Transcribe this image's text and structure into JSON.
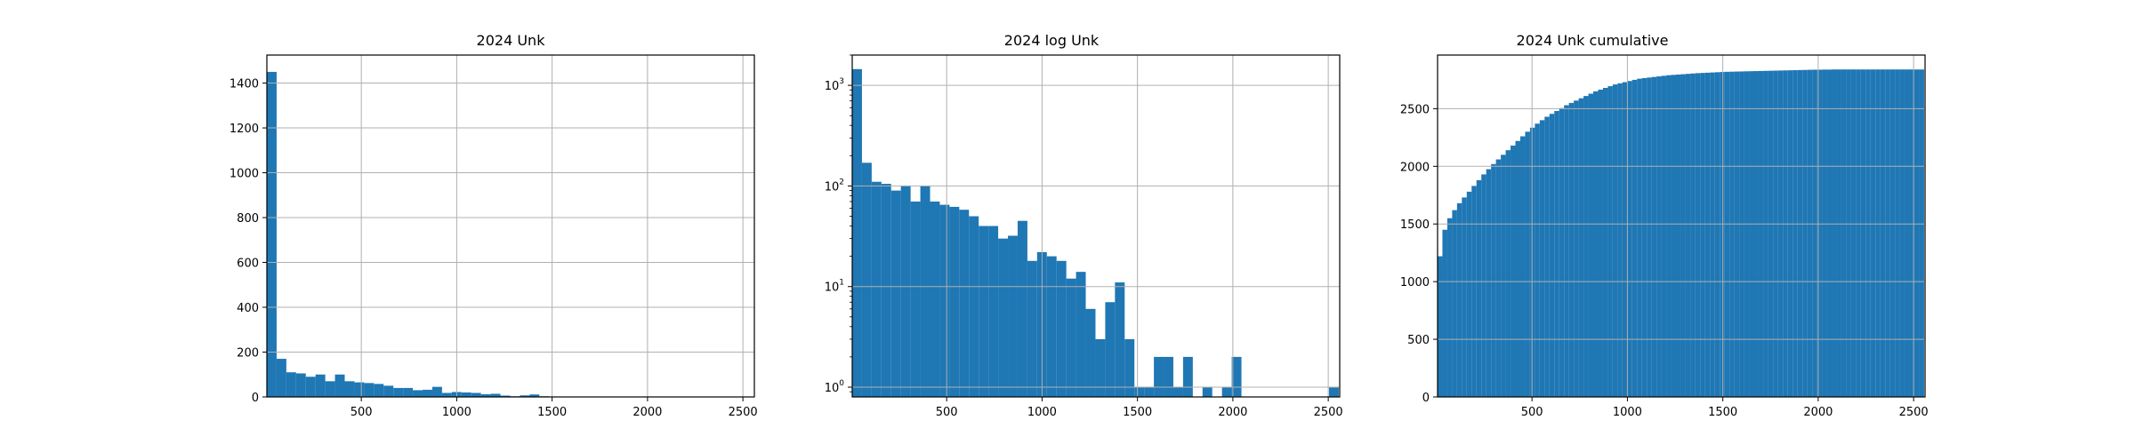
{
  "figure": {
    "bar_color": "#1f77b4",
    "grid_color": "#b0b0b0",
    "axis_color": "#000000"
  },
  "chart_data": [
    {
      "type": "bar",
      "title": "2024 Unk",
      "xlabel": "",
      "ylabel": "",
      "xlim": [
        5,
        2560
      ],
      "ylim": [
        0,
        1525
      ],
      "yscale": "linear",
      "grid": true,
      "xticks": [
        500,
        1000,
        1500,
        2000,
        2500
      ],
      "xtick_labels": [
        "500",
        "1000",
        "1500",
        "2000",
        "2500"
      ],
      "yticks": [
        0,
        200,
        400,
        600,
        800,
        1000,
        1200,
        1400
      ],
      "ytick_labels": [
        "0",
        "200",
        "400",
        "600",
        "800",
        "1000",
        "1200",
        "1400"
      ],
      "bin_edges_start": 5,
      "bin_width": 51,
      "values": [
        1450,
        170,
        110,
        105,
        90,
        100,
        70,
        100,
        70,
        65,
        62,
        58,
        50,
        40,
        40,
        30,
        32,
        45,
        18,
        22,
        20,
        18,
        12,
        14,
        6,
        3,
        7,
        11,
        3,
        0,
        0,
        1,
        2,
        2,
        0,
        2,
        0,
        1,
        0,
        1,
        2,
        0,
        0,
        0,
        0,
        0,
        0,
        0,
        0,
        0
      ]
    },
    {
      "type": "bar",
      "title": "2024 log Unk",
      "xlabel": "",
      "ylabel": "",
      "xlim": [
        5,
        2560
      ],
      "ylim": [
        0.8,
        2000
      ],
      "yscale": "log",
      "grid": true,
      "xticks": [
        500,
        1000,
        1500,
        2000,
        2500
      ],
      "xtick_labels": [
        "500",
        "1000",
        "1500",
        "2000",
        "2500"
      ],
      "yticks": [
        1,
        10,
        100,
        1000
      ],
      "ytick_bases": [
        "10",
        "10",
        "10",
        "10"
      ],
      "ytick_exponents": [
        "0",
        "1",
        "2",
        "3"
      ],
      "bin_edges_start": 5,
      "bin_width": 51,
      "values": [
        1450,
        170,
        110,
        105,
        90,
        100,
        70,
        100,
        70,
        65,
        62,
        58,
        50,
        40,
        40,
        30,
        32,
        45,
        18,
        22,
        20,
        18,
        12,
        14,
        6,
        3,
        7,
        11,
        3,
        1,
        1,
        2,
        2,
        1,
        2,
        0,
        1,
        0,
        1,
        2,
        0,
        0,
        0,
        0,
        0,
        0,
        0,
        0,
        0,
        1
      ]
    },
    {
      "type": "bar",
      "title": "2024 Unk cumulative",
      "xlabel": "",
      "ylabel": "",
      "xlim": [
        5,
        2560
      ],
      "ylim": [
        0,
        2965
      ],
      "yscale": "linear",
      "grid": true,
      "xticks": [
        500,
        1000,
        1500,
        2000,
        2500
      ],
      "xtick_labels": [
        "500",
        "1000",
        "1500",
        "2000",
        "2500"
      ],
      "yticks": [
        0,
        500,
        1000,
        1500,
        2000,
        2500
      ],
      "ytick_labels": [
        "0",
        "500",
        "1000",
        "1500",
        "2000",
        "2500"
      ],
      "bin_edges_start": 5,
      "bin_width": 25.5,
      "values": [
        1220,
        1450,
        1550,
        1620,
        1680,
        1730,
        1780,
        1830,
        1880,
        1930,
        1975,
        2020,
        2060,
        2100,
        2140,
        2180,
        2220,
        2260,
        2300,
        2335,
        2370,
        2400,
        2430,
        2455,
        2480,
        2505,
        2530,
        2550,
        2570,
        2590,
        2610,
        2630,
        2650,
        2665,
        2680,
        2695,
        2710,
        2720,
        2730,
        2740,
        2750,
        2760,
        2765,
        2770,
        2775,
        2780,
        2785,
        2790,
        2793,
        2796,
        2799,
        2802,
        2805,
        2808,
        2810,
        2812,
        2814,
        2816,
        2818,
        2820,
        2821,
        2822,
        2823,
        2824,
        2825,
        2826,
        2827,
        2828,
        2829,
        2830,
        2831,
        2832,
        2833,
        2834,
        2835,
        2836,
        2837,
        2838,
        2838,
        2839,
        2839,
        2840,
        2840,
        2840,
        2840,
        2840,
        2840,
        2840,
        2840,
        2840,
        2840,
        2840,
        2840,
        2840,
        2840,
        2840,
        2840,
        2840,
        2840,
        2840
      ]
    }
  ]
}
